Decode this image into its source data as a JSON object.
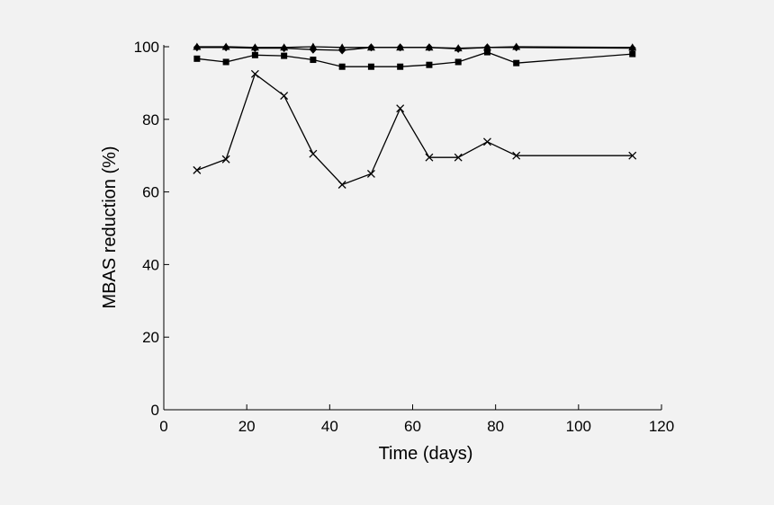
{
  "chart_data": {
    "type": "line",
    "title": "",
    "xlabel": "Time (days)",
    "ylabel": "MBAS reduction (%)",
    "xlim": [
      0,
      120
    ],
    "ylim": [
      0,
      100
    ],
    "xticks": [
      0,
      20,
      40,
      60,
      80,
      100,
      120
    ],
    "yticks": [
      0,
      20,
      40,
      60,
      80,
      100
    ],
    "grid": false,
    "legend": "none",
    "line_color": "#000000",
    "background": "#f2f2f2",
    "series": [
      {
        "marker": "triangle",
        "points": [
          [
            8,
            100
          ],
          [
            15,
            100
          ],
          [
            22,
            99.8
          ],
          [
            29,
            99.8
          ],
          [
            36,
            100
          ],
          [
            43,
            99.8
          ],
          [
            50,
            99.8
          ],
          [
            57,
            99.8
          ],
          [
            64,
            99.8
          ],
          [
            71,
            99.6
          ],
          [
            78,
            99.8
          ],
          [
            85,
            100
          ],
          [
            113,
            99.8
          ]
        ]
      },
      {
        "marker": "diamond",
        "points": [
          [
            8,
            99.8
          ],
          [
            15,
            99.8
          ],
          [
            22,
            99.6
          ],
          [
            29,
            99.6
          ],
          [
            36,
            99.2
          ],
          [
            43,
            99
          ],
          [
            50,
            99.8
          ],
          [
            57,
            99.8
          ],
          [
            64,
            99.8
          ],
          [
            71,
            99.4
          ],
          [
            78,
            99.8
          ],
          [
            85,
            99.8
          ],
          [
            113,
            99.6
          ]
        ]
      },
      {
        "marker": "square",
        "points": [
          [
            8,
            96.7
          ],
          [
            15,
            95.8
          ],
          [
            22,
            97.7
          ],
          [
            29,
            97.5
          ],
          [
            36,
            96.4
          ],
          [
            43,
            94.5
          ],
          [
            50,
            94.5
          ],
          [
            57,
            94.5
          ],
          [
            64,
            95
          ],
          [
            71,
            95.8
          ],
          [
            78,
            98.5
          ],
          [
            85,
            95.5
          ],
          [
            113,
            98
          ]
        ]
      },
      {
        "marker": "x",
        "points": [
          [
            8,
            66
          ],
          [
            15,
            69
          ],
          [
            22,
            92.5
          ],
          [
            29,
            86.5
          ],
          [
            36,
            70.5
          ],
          [
            43,
            62
          ],
          [
            50,
            65
          ],
          [
            57,
            83
          ],
          [
            64,
            69.5
          ],
          [
            71,
            69.5
          ],
          [
            78,
            73.8
          ],
          [
            85,
            70
          ],
          [
            113,
            70
          ]
        ]
      }
    ]
  }
}
